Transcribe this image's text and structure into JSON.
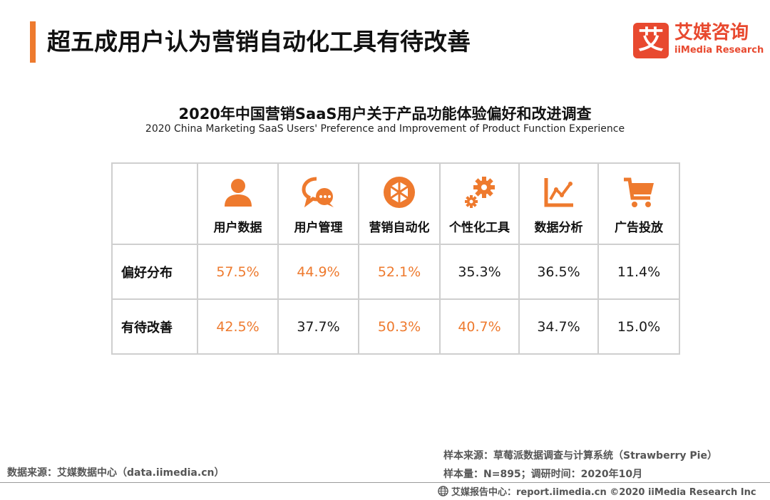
{
  "header": {
    "title": "超五成用户认为营销自动化工具有待改善",
    "accent_color": "#ee7a2e",
    "logo": {
      "mark": "艾",
      "cn": "艾媒咨询",
      "en": "iiMedia Research",
      "color": "#e8492f"
    }
  },
  "chart_data": {
    "type": "table",
    "title": "2020年中国营销SaaS用户关于产品功能体验偏好和改进调查",
    "subtitle": "2020 China Marketing SaaS Users' Preference and Improvement of Product Function Experience",
    "columns": [
      {
        "label": "用户数据",
        "icon": "user-icon"
      },
      {
        "label": "用户管理",
        "icon": "chat-bubbles-icon"
      },
      {
        "label": "营销自动化",
        "icon": "aperture-icon"
      },
      {
        "label": "个性化工具",
        "icon": "gears-icon"
      },
      {
        "label": "数据分析",
        "icon": "line-chart-icon"
      },
      {
        "label": "广告投放",
        "icon": "shopping-cart-icon"
      }
    ],
    "rows": [
      {
        "label": "偏好分布",
        "cells": [
          {
            "text": "57.5%",
            "value": 57.5,
            "highlight": true
          },
          {
            "text": "44.9%",
            "value": 44.9,
            "highlight": true
          },
          {
            "text": "52.1%",
            "value": 52.1,
            "highlight": true
          },
          {
            "text": "35.3%",
            "value": 35.3,
            "highlight": false
          },
          {
            "text": "36.5%",
            "value": 36.5,
            "highlight": false
          },
          {
            "text": "11.4%",
            "value": 11.4,
            "highlight": false
          }
        ]
      },
      {
        "label": "有待改善",
        "cells": [
          {
            "text": "42.5%",
            "value": 42.5,
            "highlight": true
          },
          {
            "text": "37.7%",
            "value": 37.7,
            "highlight": false
          },
          {
            "text": "50.3%",
            "value": 50.3,
            "highlight": true
          },
          {
            "text": "40.7%",
            "value": 40.7,
            "highlight": true
          },
          {
            "text": "34.7%",
            "value": 34.7,
            "highlight": false
          },
          {
            "text": "15.0%",
            "value": 15.0,
            "highlight": false
          }
        ]
      }
    ],
    "highlight_color": "#ee7a2e",
    "icon_color": "#ee7a2e"
  },
  "footer": {
    "source": "数据来源：艾媒数据中心（data.iimedia.cn）",
    "sample_source": "样本来源：草莓派数据调查与计算系统（Strawberry Pie）",
    "sample_size": "样本量：N=895；调研时间：2020年10月",
    "copyright": "艾媒报告中心：report.iimedia.cn  ©2020  iiMedia Research  Inc"
  }
}
